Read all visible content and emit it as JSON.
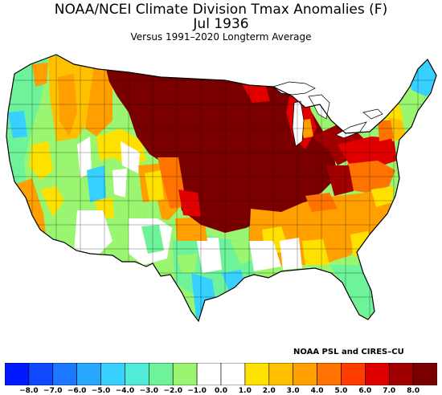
{
  "title": "NOAA/NCEI Climate Division Tmax Anomalies (F)",
  "period": "Jul 1936",
  "subtitle": "Versus 1991–2020 Longterm Average",
  "credit": "NOAA PSL and CIRES–CU",
  "legend": {
    "tick_labels": [
      "−8.0",
      "−7.0",
      "−6.0",
      "−5.0",
      "−4.0",
      "−3.0",
      "−2.0",
      "−1.0",
      "0.0",
      "1.0",
      "2.0",
      "3.0",
      "4.0",
      "5.0",
      "6.0",
      "7.0",
      "8.0"
    ],
    "colors": [
      "#0019ff",
      "#0f48ff",
      "#1c78ff",
      "#28a7ff",
      "#38d0ff",
      "#50ecd9",
      "#6ef39a",
      "#9af570",
      "#ffffff",
      "#ffffff",
      "#ffe100",
      "#ffc000",
      "#ffa000",
      "#ff7300",
      "#ff3d00",
      "#e00000",
      "#a20000",
      "#7a0000"
    ]
  }
}
